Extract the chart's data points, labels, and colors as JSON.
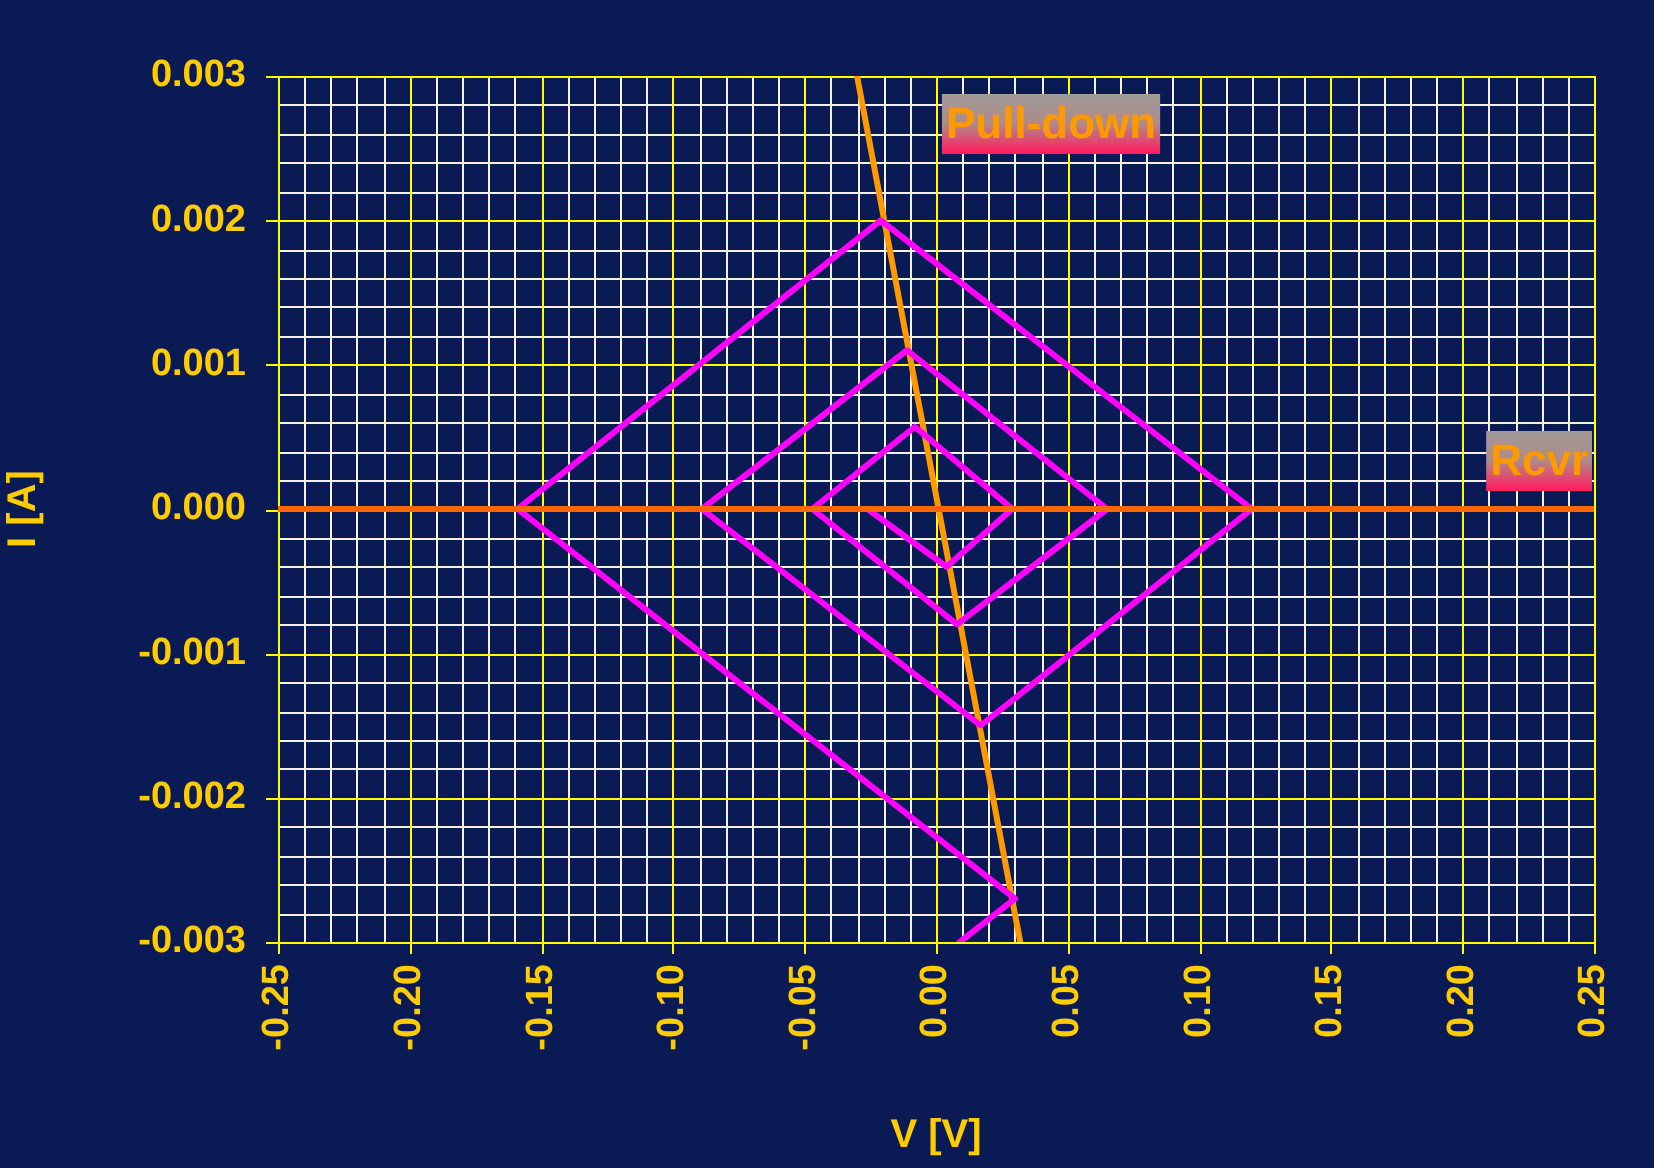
{
  "chart_data": {
    "type": "line",
    "xlabel": "V [V]",
    "ylabel": "I [A]",
    "xlim": [
      -0.25,
      0.25
    ],
    "ylim": [
      -0.003,
      0.003
    ],
    "xticks": [
      {
        "value": -0.25,
        "label": "-0.25"
      },
      {
        "value": -0.2,
        "label": "-0.20"
      },
      {
        "value": -0.15,
        "label": "-0.15"
      },
      {
        "value": -0.1,
        "label": "-0.10"
      },
      {
        "value": -0.05,
        "label": "-0.05"
      },
      {
        "value": 0,
        "label": "0.00"
      },
      {
        "value": 0.05,
        "label": "0.05"
      },
      {
        "value": 0.1,
        "label": "0.10"
      },
      {
        "value": 0.15,
        "label": "0.15"
      },
      {
        "value": 0.2,
        "label": "0.20"
      },
      {
        "value": 0.25,
        "label": "0.25"
      }
    ],
    "yticks": [
      {
        "value": -0.003,
        "label": "-0.003"
      },
      {
        "value": -0.002,
        "label": "-0.002"
      },
      {
        "value": -0.001,
        "label": "-0.001"
      },
      {
        "value": 0,
        "label": "0.000"
      },
      {
        "value": 0.001,
        "label": "0.001"
      },
      {
        "value": 0.002,
        "label": "0.002"
      },
      {
        "value": 0.003,
        "label": "0.003"
      }
    ],
    "grid": true,
    "marker": "none",
    "line_style": "solid",
    "legend": false,
    "series": [
      {
        "name": "Rcvr",
        "color": "#ff6600",
        "x": [
          -0.25,
          0.25
        ],
        "values": [
          0,
          0
        ]
      },
      {
        "color": "#ff00ff",
        "x": [
          0.009,
          0.03,
          -0.159,
          -0.021,
          0.12,
          0.017,
          -0.089,
          -0.011,
          0.065,
          0.008,
          -0.047,
          -0.008,
          0.029,
          0.004,
          -0.026
        ],
        "values": [
          -0.003,
          -0.0027,
          0,
          0.002,
          0,
          -0.0015,
          0,
          0.0011,
          0,
          -0.0008,
          0,
          0.00057,
          0,
          -0.0004,
          0
        ]
      },
      {
        "name": "Pull-down",
        "color": "#ff9900",
        "x": [
          -0.03,
          0.032
        ],
        "values": [
          0.003,
          -0.003
        ]
      }
    ]
  }
}
